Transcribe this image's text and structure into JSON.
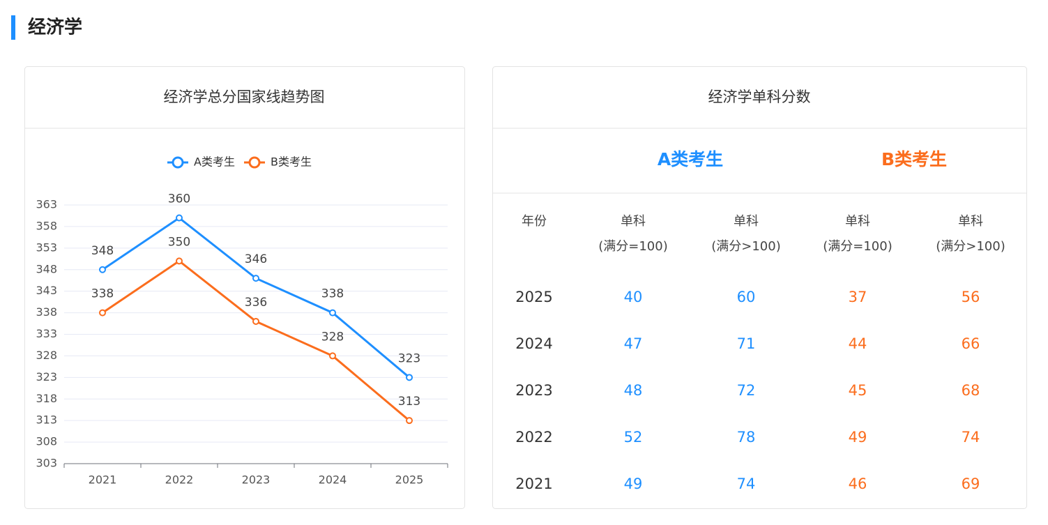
{
  "header": {
    "title": "经济学"
  },
  "chart_data": {
    "type": "line",
    "title": "经济学总分国家线趋势图",
    "categories": [
      "2021",
      "2022",
      "2023",
      "2024",
      "2025"
    ],
    "series": [
      {
        "name": "A类考生",
        "color": "#1e8fff",
        "values": [
          348,
          360,
          346,
          338,
          323
        ]
      },
      {
        "name": "B类考生",
        "color": "#fb6d1d",
        "values": [
          338,
          350,
          336,
          328,
          313
        ]
      }
    ],
    "ylim": [
      303,
      363
    ],
    "yticks": [
      303,
      308,
      313,
      318,
      323,
      328,
      333,
      338,
      343,
      348,
      353,
      358,
      363
    ],
    "grid": true,
    "legend": "top"
  },
  "table": {
    "title": "经济学单科分数",
    "groups": [
      {
        "name": "A类考生",
        "color": "#1e8fff"
      },
      {
        "name": "B类考生",
        "color": "#fb6d1d"
      }
    ],
    "columns": [
      {
        "label": "年份"
      },
      {
        "label": "单科",
        "note": "(满分=100)"
      },
      {
        "label": "单科",
        "note": "(满分>100)"
      },
      {
        "label": "单科",
        "note": "(满分=100)"
      },
      {
        "label": "单科",
        "note": "(满分>100)"
      }
    ],
    "rows": [
      [
        "2025",
        "40",
        "60",
        "37",
        "56"
      ],
      [
        "2024",
        "47",
        "71",
        "44",
        "66"
      ],
      [
        "2023",
        "48",
        "72",
        "45",
        "68"
      ],
      [
        "2022",
        "52",
        "78",
        "49",
        "74"
      ],
      [
        "2021",
        "49",
        "74",
        "46",
        "69"
      ]
    ]
  }
}
